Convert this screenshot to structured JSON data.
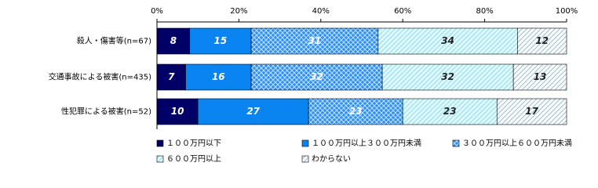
{
  "chart_data": {
    "type": "stacked-bar-horizontal",
    "categories": [
      "殺人・傷害等(n=67)",
      "交通事故による被害(n=435)",
      "性犯罪による被害(n=52)"
    ],
    "series": [
      {
        "name": "１００万円以下",
        "color": "#000066",
        "values": [
          8,
          7,
          10
        ]
      },
      {
        "name": "１００万円以上３００万円未満",
        "color": "#0a84f0",
        "values": [
          15,
          16,
          27
        ]
      },
      {
        "name": "３００万円以上６００万円未満",
        "color": "#2d8ef5",
        "values": [
          31,
          32,
          23
        ]
      },
      {
        "name": "６００万円以上",
        "color": "#9ee6f0",
        "values": [
          34,
          32,
          23
        ]
      },
      {
        "name": "わからない",
        "color": "#6ab8e0",
        "values": [
          12,
          13,
          17
        ]
      }
    ],
    "xlim": [
      0,
      100
    ],
    "xticks": [
      {
        "value": 0,
        "label": "0%"
      },
      {
        "value": 20,
        "label": "20%"
      },
      {
        "value": 40,
        "label": "40%"
      },
      {
        "value": 60,
        "label": "60%"
      },
      {
        "value": 80,
        "label": "80%"
      },
      {
        "value": 100,
        "label": "100%"
      }
    ]
  }
}
